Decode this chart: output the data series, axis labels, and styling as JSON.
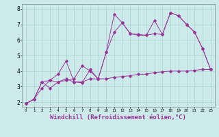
{
  "background_color": "#cceaea",
  "grid_color": "#aad4d4",
  "line_color": "#993399",
  "xlim": [
    -0.5,
    23.5
  ],
  "ylim": [
    1.7,
    8.3
  ],
  "xticks": [
    0,
    1,
    2,
    3,
    4,
    5,
    6,
    7,
    8,
    9,
    10,
    11,
    12,
    13,
    14,
    15,
    16,
    17,
    18,
    19,
    20,
    21,
    22,
    23
  ],
  "yticks": [
    2,
    3,
    4,
    5,
    6,
    7,
    8
  ],
  "xlabel": "Windchill (Refroidissement éolien,°C)",
  "xlabel_fontsize": 6.5,
  "line1_x": [
    0,
    1,
    2,
    3,
    4,
    5,
    6,
    7,
    8,
    9,
    10,
    11,
    12,
    13,
    14,
    15,
    16,
    17,
    18,
    19,
    20,
    21,
    22,
    23
  ],
  "line1_y": [
    1.9,
    2.2,
    2.9,
    3.4,
    3.8,
    4.65,
    3.3,
    3.25,
    4.1,
    3.5,
    5.2,
    7.65,
    7.1,
    6.4,
    6.35,
    6.3,
    7.25,
    6.35,
    7.75,
    7.55,
    7.0,
    6.5,
    5.45,
    4.1
  ],
  "line2_x": [
    0,
    1,
    2,
    3,
    4,
    5,
    6,
    7,
    8,
    9,
    10,
    11,
    12,
    13,
    14,
    15,
    16,
    17,
    18,
    19,
    20,
    21,
    22,
    23
  ],
  "line2_y": [
    1.9,
    2.2,
    3.3,
    2.9,
    3.3,
    3.4,
    3.5,
    4.35,
    4.0,
    3.5,
    5.2,
    6.5,
    7.1,
    6.4,
    6.3,
    6.3,
    6.4,
    6.35,
    7.75,
    7.55,
    7.0,
    6.5,
    5.45,
    4.1
  ],
  "line3_x": [
    0,
    1,
    2,
    3,
    4,
    5,
    6,
    7,
    8,
    9,
    10,
    11,
    12,
    13,
    14,
    15,
    16,
    17,
    18,
    19,
    20,
    21,
    22,
    23
  ],
  "line3_y": [
    1.9,
    2.2,
    3.3,
    3.4,
    3.3,
    3.5,
    3.3,
    3.3,
    3.5,
    3.5,
    3.5,
    3.6,
    3.65,
    3.7,
    3.8,
    3.8,
    3.9,
    3.95,
    4.0,
    4.0,
    4.0,
    4.05,
    4.1,
    4.1
  ]
}
